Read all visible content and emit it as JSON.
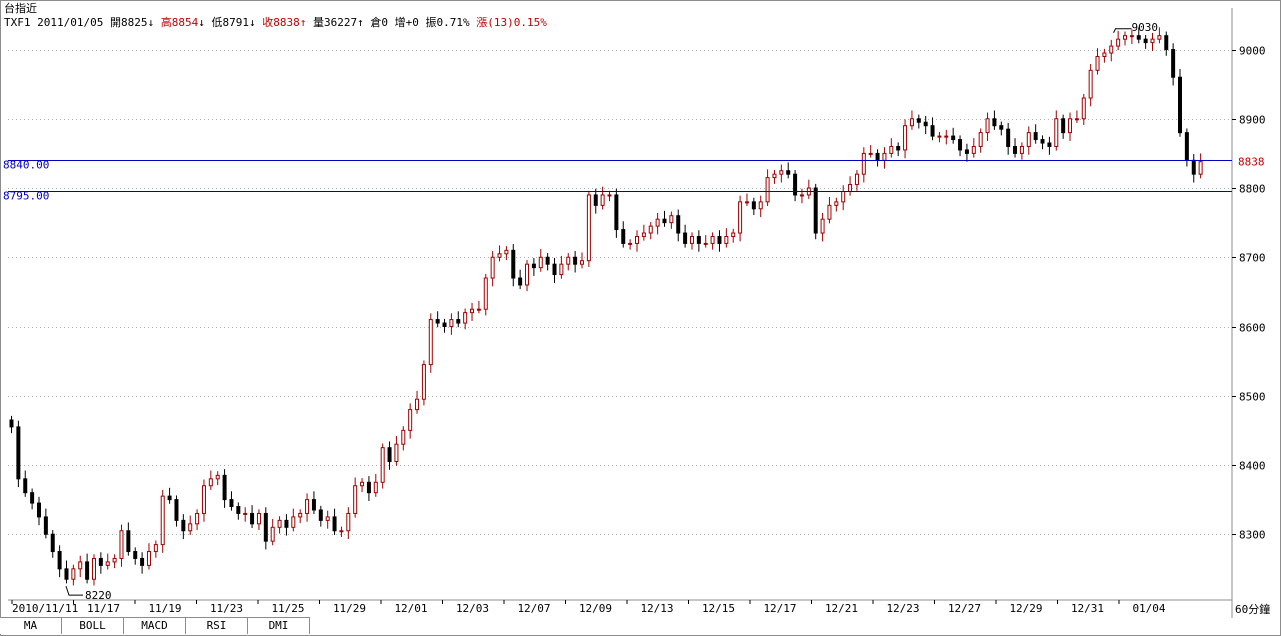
{
  "header": {
    "title": "台指近",
    "symbol": "TXF1",
    "date": "2011/01/05",
    "open_label": "開",
    "open": "8825",
    "open_arrow": "↓",
    "high_label": "高",
    "high": "8854",
    "high_arrow": "↓",
    "low_label": "低",
    "low": "8791",
    "low_arrow": "↓",
    "close_label": "收",
    "close": "8838",
    "close_arrow": "↑",
    "volume_label": "量",
    "volume": "36227",
    "volume_arrow": "↑",
    "oi_label": "倉",
    "oi": "0",
    "oi_change_label": "增",
    "oi_change": "+0",
    "amplitude_label": "振",
    "amplitude": "0.71%",
    "change_label": "漲",
    "change": "(13)",
    "change_pct": "0.15%"
  },
  "tabs": [
    "MA",
    "BOLL",
    "MACD",
    "RSI",
    "DMI"
  ],
  "timeframe": "60分鐘",
  "colors": {
    "up": "#a00000",
    "down": "#000000",
    "hline": "#0000c0",
    "grid": "#b0b0b0",
    "last_price": "#c00000"
  },
  "chart_data": {
    "type": "candlestick",
    "y_ticks": [
      8300,
      8400,
      8500,
      8600,
      8700,
      8800,
      8900,
      9000
    ],
    "ylim": [
      8205,
      9060
    ],
    "x_tick_labels": [
      "2010/11/11",
      "11/17",
      "11/19",
      "11/23",
      "11/25",
      "11/29",
      "12/01",
      "12/03",
      "12/07",
      "12/09",
      "12/13",
      "12/15",
      "12/17",
      "12/21",
      "12/23",
      "12/27",
      "12/29",
      "12/31",
      "01/04"
    ],
    "horizontal_lines": [
      8840.0,
      8795.0
    ],
    "horizontal_line_labels": [
      "8840.00",
      "8795.00"
    ],
    "last_price_label": "8838",
    "annotations": {
      "high": "9030",
      "low": "8220"
    },
    "closes": [
      8455,
      8380,
      8360,
      8345,
      8325,
      8300,
      8275,
      8250,
      8235,
      8250,
      8260,
      8235,
      8265,
      8255,
      8260,
      8265,
      8305,
      8275,
      8265,
      8255,
      8275,
      8285,
      8355,
      8350,
      8320,
      8305,
      8315,
      8330,
      8370,
      8380,
      8385,
      8350,
      8340,
      8330,
      8330,
      8315,
      8330,
      8290,
      8310,
      8320,
      8310,
      8325,
      8330,
      8350,
      8335,
      8320,
      8325,
      8305,
      8305,
      8330,
      8370,
      8375,
      8360,
      8375,
      8425,
      8405,
      8430,
      8450,
      8480,
      8495,
      8545,
      8610,
      8605,
      8600,
      8610,
      8605,
      8620,
      8625,
      8625,
      8670,
      8700,
      8705,
      8710,
      8670,
      8660,
      8690,
      8685,
      8700,
      8690,
      8675,
      8690,
      8700,
      8690,
      8695,
      8790,
      8775,
      8790,
      8790,
      8740,
      8720,
      8720,
      8730,
      8735,
      8745,
      8755,
      8750,
      8760,
      8735,
      8720,
      8730,
      8720,
      8720,
      8730,
      8720,
      8730,
      8735,
      8780,
      8780,
      8770,
      8780,
      8815,
      8820,
      8825,
      8820,
      8790,
      8790,
      8800,
      8735,
      8755,
      8775,
      8780,
      8795,
      8805,
      8820,
      8850,
      8850,
      8840,
      8850,
      8860,
      8855,
      8890,
      8900,
      8895,
      8890,
      8875,
      8875,
      8875,
      8870,
      8855,
      8850,
      8860,
      8880,
      8900,
      8890,
      8885,
      8860,
      8850,
      8860,
      8880,
      8870,
      8865,
      8860,
      8900,
      8880,
      8900,
      8900,
      8930,
      8970,
      8990,
      8995,
      9005,
      9015,
      9020,
      9020,
      9015,
      9010,
      9015,
      9020,
      9000,
      8960,
      8880,
      8840,
      8820,
      8838
    ]
  }
}
